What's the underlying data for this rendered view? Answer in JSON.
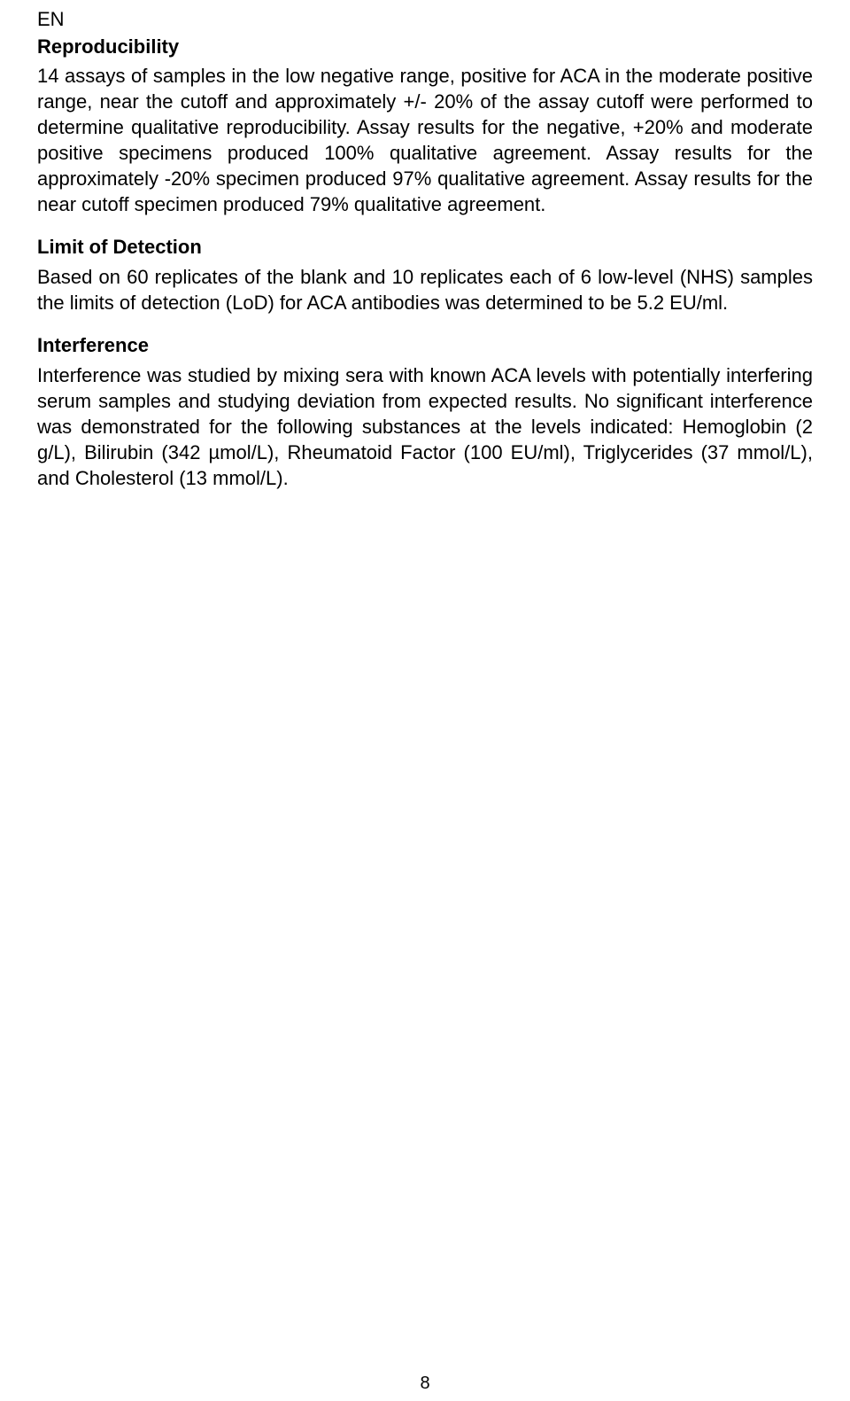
{
  "doc": {
    "lang_code": "EN",
    "page_number": "8",
    "sections": [
      {
        "heading": "Reproducibility",
        "body": "14 assays of samples in the low negative range, positive for ACA in the moderate positive range, near the cutoff and approximately +/- 20% of the assay cutoff were performed to determine qualitative reproducibility. Assay results for the negative, +20% and moderate positive specimens produced 100% qualitative agreement. Assay results for the approximately -20% specimen produced 97% qualitative agreement. Assay results for the near cutoff specimen produced 79% qualitative agreement."
      },
      {
        "heading": "Limit of Detection",
        "body": "Based on 60 replicates of the blank and 10 replicates each of 6 low-level (NHS) samples the limits of detection (LoD) for ACA antibodies was determined to be 5.2 EU/ml."
      },
      {
        "heading": "Interference",
        "body": "Interference was studied by mixing sera with known ACA levels with potentially interfering serum samples and studying deviation from expected results. No significant interference was demonstrated for the following substances at the levels indicated: Hemoglobin (2 g/L), Bilirubin (342 µmol/L), Rheumatoid Factor (100 EU/ml), Triglycerides (37 mmol/L), and Cholesterol (13 mmol/L)."
      }
    ]
  },
  "style": {
    "font_family": "Arial",
    "body_fontsize_pt": 16,
    "heading_weight": "bold",
    "text_color": "#000000",
    "background_color": "#ffffff",
    "text_align": "justify"
  }
}
